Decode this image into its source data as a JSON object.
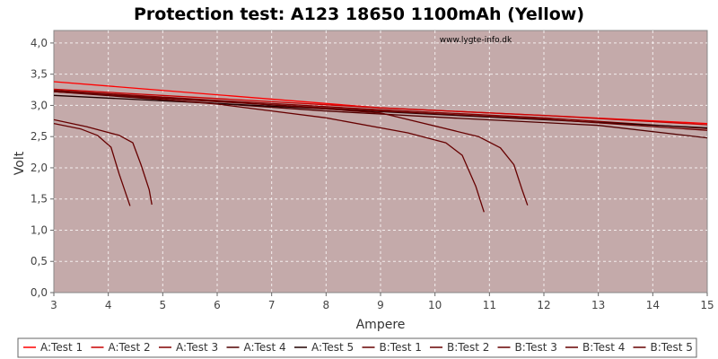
{
  "chart_data": {
    "type": "line",
    "title": "Protection test: A123 18650 1100mAh (Yellow)",
    "xlabel": "Ampere",
    "ylabel": "Volt",
    "xlim": [
      3,
      15
    ],
    "ylim": [
      0,
      4.2
    ],
    "xticks": [
      "3",
      "4",
      "5",
      "6",
      "7",
      "8",
      "9",
      "10",
      "11",
      "12",
      "13",
      "14",
      "15"
    ],
    "yticks": [
      "0,0",
      "0,5",
      "1,0",
      "1,5",
      "2,0",
      "2,5",
      "3,0",
      "3,5",
      "4,0"
    ],
    "annotation": "www.lygte-info.dk",
    "grid": true,
    "legend_position": "bottom",
    "plot_background": "#c4aaaa",
    "series": [
      {
        "name": "A:Test 1",
        "color": "#ff0000",
        "x": [
          3,
          6,
          9,
          12,
          15
        ],
        "y": [
          3.38,
          3.17,
          2.96,
          2.84,
          2.71
        ]
      },
      {
        "name": "A:Test 2",
        "color": "#c80000",
        "x": [
          3,
          6,
          9,
          12,
          15
        ],
        "y": [
          3.26,
          3.11,
          2.96,
          2.84,
          2.69
        ]
      },
      {
        "name": "A:Test 3",
        "color": "#800000",
        "x": [
          3,
          6,
          9,
          12,
          15
        ],
        "y": [
          3.24,
          3.08,
          2.93,
          2.8,
          2.63
        ]
      },
      {
        "name": "A:Test 4",
        "color": "#500000",
        "x": [
          3,
          5.5,
          8,
          10.5,
          13,
          15
        ],
        "y": [
          3.22,
          3.06,
          2.91,
          2.79,
          2.68,
          2.48
        ]
      },
      {
        "name": "A:Test 5",
        "color": "#200000",
        "x": [
          3,
          6,
          9,
          12,
          15
        ],
        "y": [
          3.16,
          3.03,
          2.9,
          2.77,
          2.64
        ]
      },
      {
        "name": "B:Test 1",
        "color": "#660000",
        "x": [
          3,
          3.5,
          3.8,
          4.05,
          4.2,
          4.4
        ],
        "y": [
          2.71,
          2.62,
          2.52,
          2.33,
          1.9,
          1.39
        ]
      },
      {
        "name": "B:Test 2",
        "color": "#660000",
        "x": [
          3,
          3.6,
          4.2,
          4.45,
          4.6,
          4.75,
          4.8
        ],
        "y": [
          2.77,
          2.66,
          2.52,
          2.4,
          2.05,
          1.65,
          1.41
        ]
      },
      {
        "name": "B:Test 3",
        "color": "#660000",
        "x": [
          3,
          6,
          8,
          9.5,
          10.2,
          10.5,
          10.75,
          10.9
        ],
        "y": [
          3.24,
          3.02,
          2.8,
          2.56,
          2.4,
          2.2,
          1.7,
          1.29
        ]
      },
      {
        "name": "B:Test 4",
        "color": "#660000",
        "x": [
          3,
          6,
          9,
          10.8,
          11.2,
          11.45,
          11.6,
          11.7
        ],
        "y": [
          3.22,
          3.07,
          2.88,
          2.5,
          2.32,
          2.05,
          1.65,
          1.4
        ]
      },
      {
        "name": "B:Test 5",
        "color": "#660000",
        "x": [
          3,
          6,
          9,
          12,
          15
        ],
        "y": [
          3.22,
          3.06,
          2.91,
          2.78,
          2.6
        ]
      }
    ]
  }
}
